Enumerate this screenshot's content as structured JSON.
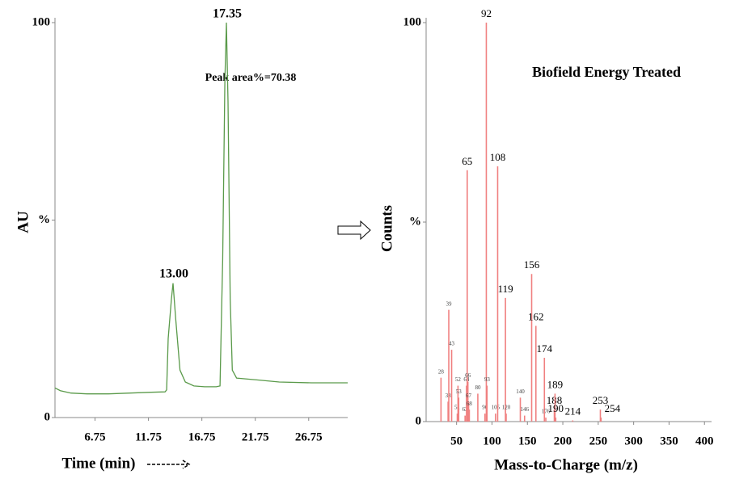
{
  "chart_data": [
    {
      "type": "line",
      "ylabel": "AU",
      "xlabel": "Time (min)",
      "color": "#5a9a4a",
      "annotations": [
        "17.35",
        "13.00",
        "Peak area%=70.38"
      ],
      "x": [
        3.0,
        3.5,
        4.5,
        6.0,
        8.0,
        10.0,
        12.0,
        13.3,
        13.45,
        13.6,
        13.9,
        14.05,
        14.3,
        14.7,
        15.2,
        16.0,
        17.0,
        18.1,
        18.45,
        18.7,
        18.9,
        19.05,
        19.2,
        19.4,
        19.6,
        20.0,
        22.0,
        24.0,
        27.0,
        30.4
      ],
      "values": [
        7.5,
        6.8,
        6.2,
        6.0,
        6.0,
        6.2,
        6.4,
        6.5,
        7.0,
        20,
        30,
        34,
        25,
        12,
        9,
        8,
        7.8,
        7.8,
        8,
        40,
        85,
        100,
        80,
        30,
        12,
        10,
        9.5,
        9,
        8.8,
        8.8
      ],
      "xlim": [
        3,
        30.4
      ],
      "ylim": [
        0,
        100
      ],
      "xticks": [
        6.75,
        11.75,
        16.75,
        21.75,
        26.75
      ],
      "yticks": [
        0,
        {
          "value": 50,
          "label": "%"
        },
        100
      ]
    },
    {
      "type": "bar",
      "title": "Biofield Energy Treated",
      "ylabel": "Counts",
      "xlabel": "Mass-to-Charge (m/z)",
      "color": "#f08080",
      "x": [
        28,
        38,
        39,
        43,
        51,
        52,
        53,
        62,
        64,
        65,
        66,
        67,
        68,
        80,
        90,
        92,
        93,
        105,
        108,
        119,
        120,
        140,
        146,
        156,
        162,
        174,
        176,
        188,
        189,
        190,
        214,
        253,
        254
      ],
      "values": [
        11,
        5,
        28,
        18,
        2,
        9,
        6,
        1.5,
        9,
        63,
        10,
        5,
        3,
        7,
        2,
        100,
        9,
        2,
        64,
        31,
        2,
        6,
        1.5,
        37,
        24,
        16,
        1,
        3,
        7,
        1,
        0.3,
        3,
        1
      ],
      "xlim": [
        7,
        410
      ],
      "ylim": [
        0,
        100
      ],
      "xticks": [
        50,
        100,
        150,
        200,
        250,
        300,
        350,
        400
      ],
      "yticks": [
        0,
        {
          "value": 50,
          "label": "%"
        },
        100
      ]
    }
  ]
}
